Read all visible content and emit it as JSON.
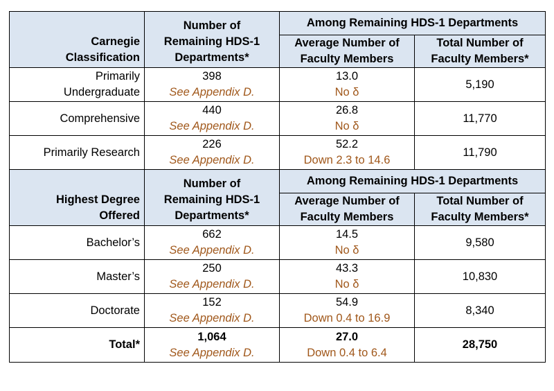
{
  "section1": {
    "header": {
      "col1": [
        "Carnegie",
        "Classification"
      ],
      "col2": [
        "Number of",
        "Remaining HDS-1",
        "Departments*"
      ],
      "group": "Among Remaining HDS-1 Departments",
      "col3": [
        "Average Number of",
        "Faculty Members"
      ],
      "col4": [
        "Total Number of",
        "Faculty Members*"
      ]
    },
    "rows": [
      {
        "label": [
          "Primarily",
          "Undergraduate"
        ],
        "count": "398",
        "note": "See Appendix D.",
        "avg": "13.0",
        "change": "No δ",
        "total": "5,190"
      },
      {
        "label": [
          "Comprehensive"
        ],
        "count": "440",
        "note": "See Appendix D.",
        "avg": "26.8",
        "change": "No δ",
        "total": "11,770"
      },
      {
        "label": [
          "Primarily Research"
        ],
        "count": "226",
        "note": "See Appendix D.",
        "avg": "52.2",
        "change": "Down 2.3 to 14.6",
        "total": "11,790"
      }
    ]
  },
  "section2": {
    "header": {
      "col1": [
        "Highest Degree",
        "Offered"
      ],
      "col2": [
        "Number of",
        "Remaining HDS-1",
        "Departments*"
      ],
      "group": "Among Remaining HDS-1 Departments",
      "col3": [
        "Average Number of",
        "Faculty Members"
      ],
      "col4": [
        "Total Number of",
        "Faculty Members*"
      ]
    },
    "rows": [
      {
        "label": [
          "Bachelor’s"
        ],
        "count": "662",
        "note": "See Appendix D.",
        "avg": "14.5",
        "change": "No δ",
        "total": "9,580"
      },
      {
        "label": [
          "Master’s"
        ],
        "count": "250",
        "note": "See Appendix D.",
        "avg": "43.3",
        "change": "No δ",
        "total": "10,830"
      },
      {
        "label": [
          "Doctorate"
        ],
        "count": "152",
        "note": "See Appendix D.",
        "avg": "54.9",
        "change": "Down 0.4 to 16.9",
        "total": "8,340"
      }
    ]
  },
  "total": {
    "label": "Total*",
    "count": "1,064",
    "note": "See Appendix D.",
    "avg": "27.0",
    "change": "Down 0.4 to 6.4",
    "total": "28,750"
  },
  "colors": {
    "header_bg": "#dbe5f1",
    "note": "#a0571a"
  }
}
